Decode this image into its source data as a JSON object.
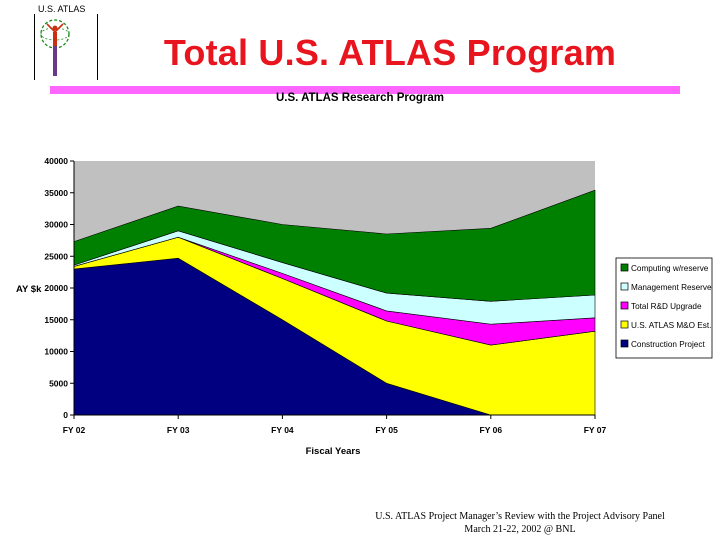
{
  "header": {
    "logo_text": "U.S. ATLAS",
    "title": "Total U.S. ATLAS Program"
  },
  "footer": {
    "line1": "U.S. ATLAS Project Manager’s Review with the Project Advisory Panel",
    "line2": "March 21-22, 2002   @ BNL"
  },
  "colors": {
    "title": "#e8141e",
    "rule": "#ff66ff",
    "plot_background": "#c0c0c0"
  },
  "chart_data": {
    "type": "area",
    "stacked": true,
    "title": "U.S. ATLAS Research Program",
    "xlabel": "Fiscal Years",
    "ylabel": "AY $k",
    "categories": [
      "FY 02",
      "FY 03",
      "FY 04",
      "FY 05",
      "FY 06",
      "FY 07"
    ],
    "ylim": [
      0,
      40000
    ],
    "yticks": [
      0,
      5000,
      10000,
      15000,
      20000,
      25000,
      30000,
      35000,
      40000
    ],
    "legend_position": "right",
    "series": [
      {
        "name": "Construction Project",
        "color": "#000080",
        "values": [
          23000,
          24700,
          15000,
          5000,
          0,
          0
        ]
      },
      {
        "name": "U.S. ATLAS M&O Est.",
        "color": "#ffff00",
        "values": [
          400,
          3300,
          6500,
          9800,
          11000,
          13200
        ]
      },
      {
        "name": "Total R&D Upgrade",
        "color": "#ff00ff",
        "values": [
          0,
          0,
          800,
          1600,
          3300,
          2100
        ]
      },
      {
        "name": "Management Reserve",
        "color": "#ccffff",
        "values": [
          200,
          1000,
          1700,
          2800,
          3600,
          3600
        ]
      },
      {
        "name": "Computing w/reserve",
        "color": "#008000",
        "values": [
          3700,
          3900,
          6000,
          9300,
          11500,
          16500
        ]
      }
    ]
  }
}
